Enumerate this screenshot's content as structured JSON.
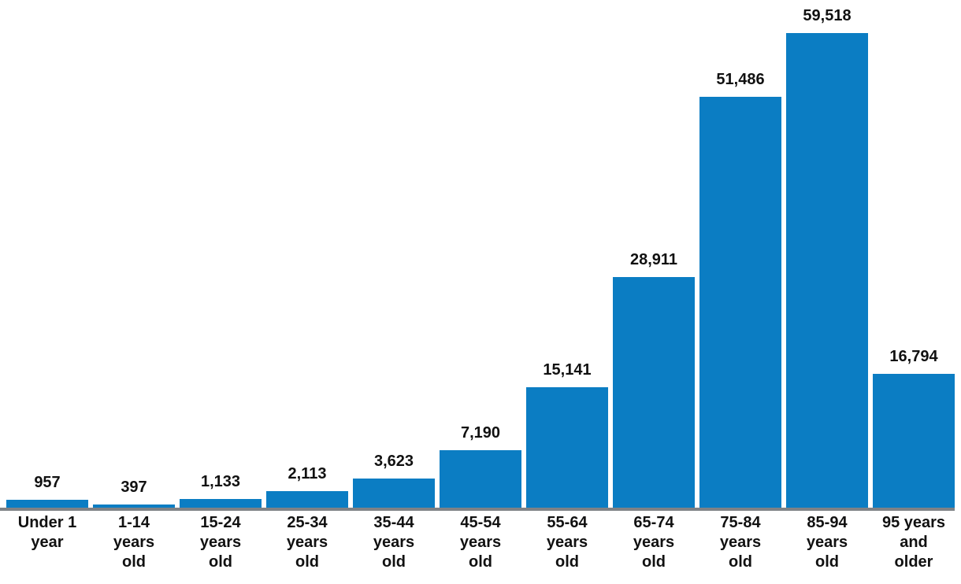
{
  "chart_data": {
    "type": "bar",
    "title": "",
    "xlabel": "",
    "ylabel": "",
    "categories": [
      "Under 1 year",
      "1-14 years old",
      "15-24 years old",
      "25-34 years old",
      "35-44 years old",
      "45-54 years old",
      "55-64 years old",
      "65-74 years old",
      "75-84 years old",
      "85-94 years old",
      "95 years and older"
    ],
    "category_label_lines": [
      [
        "Under 1",
        "year"
      ],
      [
        "1-14",
        "years",
        "old"
      ],
      [
        "15-24",
        "years",
        "old"
      ],
      [
        "25-34",
        "years",
        "old"
      ],
      [
        "35-44",
        "years",
        "old"
      ],
      [
        "45-54",
        "years",
        "old"
      ],
      [
        "55-64",
        "years",
        "old"
      ],
      [
        "65-74",
        "years",
        "old"
      ],
      [
        "75-84",
        "years",
        "old"
      ],
      [
        "85-94",
        "years",
        "old"
      ],
      [
        "95 years",
        "and",
        "older"
      ]
    ],
    "values": [
      957,
      397,
      1133,
      2113,
      3623,
      7190,
      15141,
      28911,
      51486,
      59518,
      16794
    ],
    "value_labels": [
      "957",
      "397",
      "1,133",
      "2,113",
      "3,623",
      "7,190",
      "15,141",
      "28,911",
      "51,486",
      "59,518",
      "16,794"
    ],
    "ylim": [
      0,
      59518
    ],
    "grid": false,
    "legend": "none",
    "bar_color": "#0b7dc3",
    "axis_line_color": "#7f8286",
    "text_color": "#111111",
    "background_color": "#ffffff"
  }
}
